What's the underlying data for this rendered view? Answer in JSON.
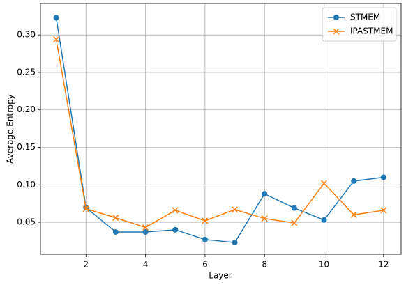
{
  "chart_data": {
    "type": "line",
    "x": [
      1,
      2,
      3,
      4,
      5,
      6,
      7,
      8,
      9,
      10,
      11,
      12
    ],
    "series": [
      {
        "name": "STMEM",
        "color": "#1f77b4",
        "marker": "circle",
        "values": [
          0.323,
          0.0695,
          0.037,
          0.037,
          0.04,
          0.027,
          0.023,
          0.088,
          0.069,
          0.053,
          0.105,
          0.11
        ]
      },
      {
        "name": "IPASTMEM",
        "color": "#ff7f0e",
        "marker": "x",
        "values": [
          0.294,
          0.068,
          0.056,
          0.043,
          0.066,
          0.052,
          0.067,
          0.055,
          0.049,
          0.102,
          0.06,
          0.066
        ]
      }
    ],
    "xlabel": "Layer",
    "ylabel": "Average Entropy",
    "xlim": [
      0.47,
      12.59
    ],
    "ylim": [
      0.0073,
      0.342
    ],
    "xticks": [
      2,
      4,
      6,
      8,
      10,
      12
    ],
    "yticks": [
      {
        "value": 0.05,
        "label": "0.05"
      },
      {
        "value": 0.1,
        "label": "0.10"
      },
      {
        "value": 0.15,
        "label": "0.15"
      },
      {
        "value": 0.2,
        "label": "0.20"
      },
      {
        "value": 0.25,
        "label": "0.25"
      },
      {
        "value": 0.3,
        "label": "0.30"
      }
    ],
    "grid": true,
    "legend": "upper right"
  }
}
